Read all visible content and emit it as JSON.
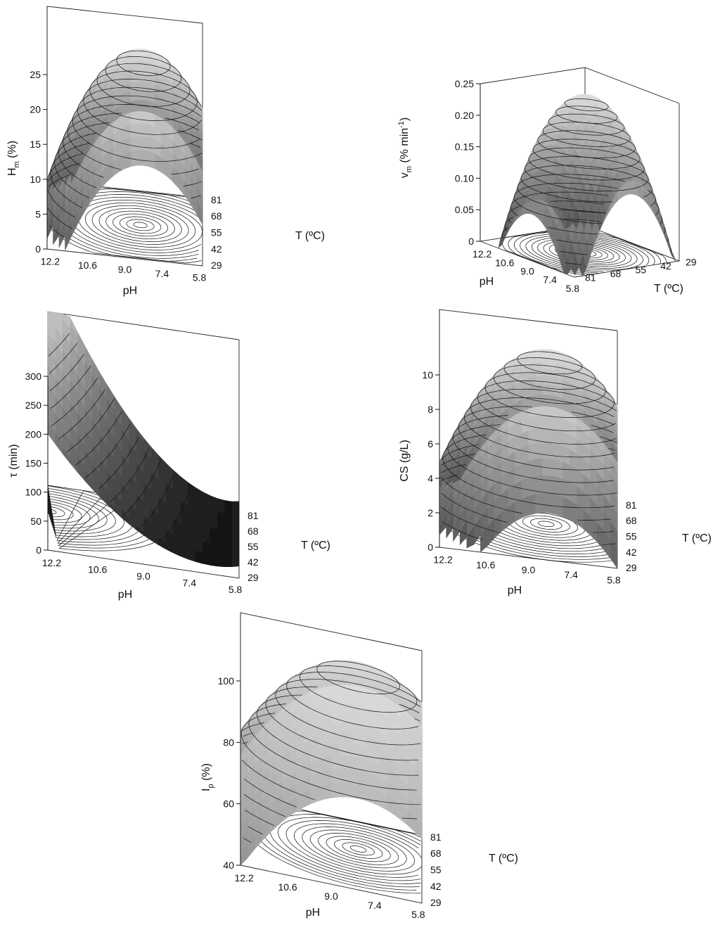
{
  "chart_data": [
    {
      "type": "surface",
      "panel": "Hm",
      "zlabel": "H",
      "zlabel_sub": "m",
      "zlabel_tail": " (%)",
      "xlabel": "pH",
      "ylabel": "T (ºC)",
      "x_ticks": [
        "12.2",
        "10.6",
        "9.0",
        "7.4",
        "5.8"
      ],
      "y_ticks": [
        "29",
        "42",
        "55",
        "68",
        "81"
      ],
      "z_ticks": [
        "0",
        "5",
        "10",
        "15",
        "20",
        "25"
      ],
      "xlim": [
        5.8,
        12.2
      ],
      "ylim": [
        29,
        81
      ],
      "zlim": [
        0,
        25
      ],
      "optimum": {
        "pH": 8.0,
        "T": 54,
        "value": 23
      },
      "corner_values": {
        "low_pH_low_T": 0,
        "high_pH_high_T": 0
      },
      "base_contours": true
    },
    {
      "type": "surface",
      "panel": "vm",
      "zlabel": "v",
      "zlabel_sub": "m",
      "zlabel_tail": " (% min",
      "zlabel_sup": "-1",
      "zlabel_close": ")",
      "xlabel": "pH",
      "ylabel": "T (ºC)",
      "x_ticks": [
        "12.2",
        "10.6",
        "9.0",
        "7.4",
        "5.8"
      ],
      "y_ticks": [
        "81",
        "68",
        "55",
        "42",
        "29"
      ],
      "z_ticks": [
        "0",
        "0.05",
        "0.10",
        "0.15",
        "0.20",
        "0.25"
      ],
      "xlim": [
        5.8,
        12.2
      ],
      "ylim": [
        29,
        81
      ],
      "zlim": [
        0,
        0.25
      ],
      "optimum": {
        "pH": 8.3,
        "T": 54,
        "value": 0.21
      },
      "base_contours": true
    },
    {
      "type": "surface",
      "panel": "tau",
      "zlabel": "τ (min)",
      "xlabel": "pH",
      "ylabel": "T (ºC)",
      "x_ticks": [
        "12.2",
        "10.6",
        "9.0",
        "7.4",
        "5.8"
      ],
      "y_ticks": [
        "29",
        "42",
        "55",
        "68",
        "81"
      ],
      "z_ticks": [
        "0",
        "50",
        "100",
        "150",
        "200",
        "250",
        "300"
      ],
      "xlim": [
        5.8,
        12.2
      ],
      "ylim": [
        29,
        81
      ],
      "zlim": [
        0,
        300
      ],
      "max_value": {
        "pH": 12.2,
        "T": 81,
        "value": 300
      },
      "min_value": {
        "pH": 7.0,
        "T": 60,
        "value": 0
      },
      "base_contours": true
    },
    {
      "type": "surface",
      "panel": "CS",
      "zlabel": "CS (g/L)",
      "xlabel": "pH",
      "ylabel": "T (ºC)",
      "x_ticks": [
        "12.2",
        "10.6",
        "9.0",
        "7.4",
        "5.8"
      ],
      "y_ticks": [
        "29",
        "42",
        "55",
        "68",
        "81"
      ],
      "z_ticks": [
        "0",
        "2",
        "4",
        "6",
        "8",
        "10"
      ],
      "xlim": [
        5.8,
        12.2
      ],
      "ylim": [
        29,
        81
      ],
      "zlim": [
        0,
        10
      ],
      "optimum": {
        "pH": 8.0,
        "T": 55,
        "value": 10
      },
      "base_contours": true
    },
    {
      "type": "surface",
      "panel": "Ip",
      "zlabel": "I",
      "zlabel_sub": "p",
      "zlabel_tail": " (%)",
      "xlabel": "pH",
      "ylabel": "T (ºC)",
      "x_ticks": [
        "12.2",
        "10.6",
        "9.0",
        "7.4",
        "5.8"
      ],
      "y_ticks": [
        "29",
        "42",
        "55",
        "68",
        "81"
      ],
      "z_ticks": [
        "40",
        "60",
        "80",
        "100"
      ],
      "xlim": [
        5.8,
        12.2
      ],
      "ylim": [
        29,
        81
      ],
      "zlim": [
        40,
        100
      ],
      "optimum": {
        "pH": 8.2,
        "T": 58,
        "value": 100
      },
      "base_contours": true
    }
  ]
}
